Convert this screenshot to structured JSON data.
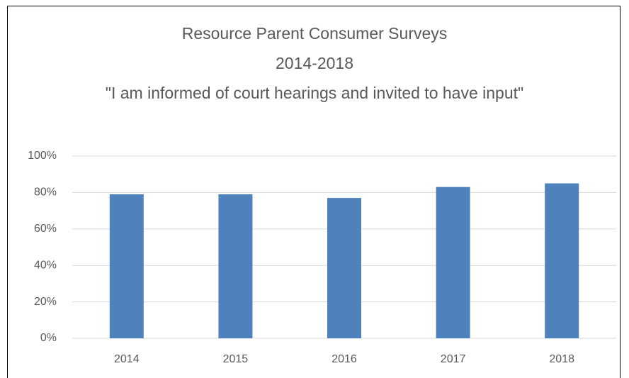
{
  "chart_data": {
    "type": "bar",
    "title": [
      "Resource Parent Consumer Surveys",
      "2014-2018",
      "\"I am informed of court hearings and invited to have input\""
    ],
    "categories": [
      "2014",
      "2015",
      "2016",
      "2017",
      "2018"
    ],
    "values": [
      79,
      79,
      77,
      83,
      85
    ],
    "color": "#4f81bd",
    "ylim": [
      0,
      100
    ],
    "yticks": [
      {
        "value": 0,
        "label": "0%"
      },
      {
        "value": 20,
        "label": "20%"
      },
      {
        "value": 40,
        "label": "40%"
      },
      {
        "value": 60,
        "label": "60%"
      },
      {
        "value": 80,
        "label": "80%"
      },
      {
        "value": 100,
        "label": "100%"
      }
    ],
    "grid": true
  }
}
